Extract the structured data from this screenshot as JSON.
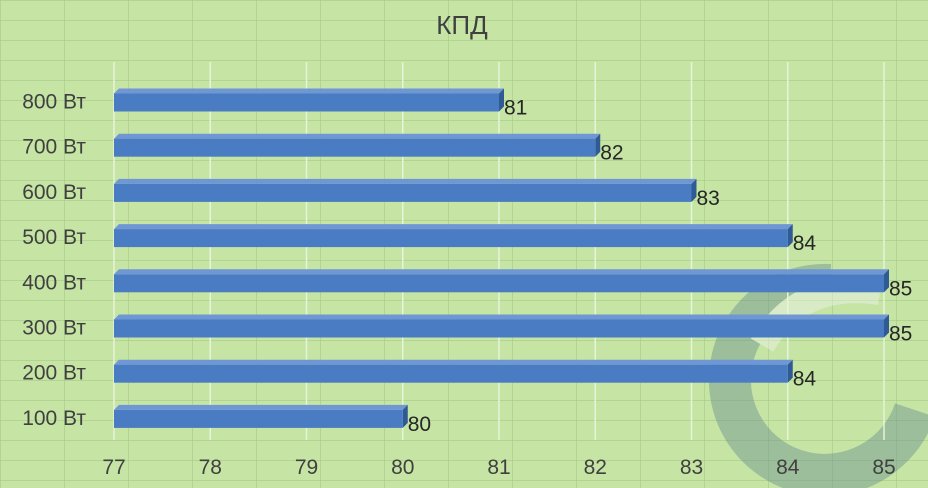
{
  "chart_data": {
    "type": "bar",
    "orientation": "horizontal",
    "title": "КПД",
    "categories": [
      "800 Вт",
      "700 Вт",
      "600 Вт",
      "500 Вт",
      "400 Вт",
      "300 Вт",
      "200 Вт",
      "100 Вт"
    ],
    "values": [
      81,
      82,
      83,
      84,
      85,
      85,
      84,
      80
    ],
    "data_labels": [
      "81",
      "82",
      "83",
      "84",
      "85",
      "85",
      "84",
      "80"
    ],
    "xlim": [
      77,
      85
    ],
    "x_ticks": [
      "77",
      "78",
      "79",
      "80",
      "81",
      "82",
      "83",
      "84",
      "85"
    ],
    "grid": true,
    "bar_color": "#4a7cc4",
    "bar_dark_color": "#2f5a93",
    "background_color": "#c6e5a5",
    "gridline_color": "#e6f4d8"
  },
  "watermark": {
    "icon": "swirl-logo-watermark"
  }
}
